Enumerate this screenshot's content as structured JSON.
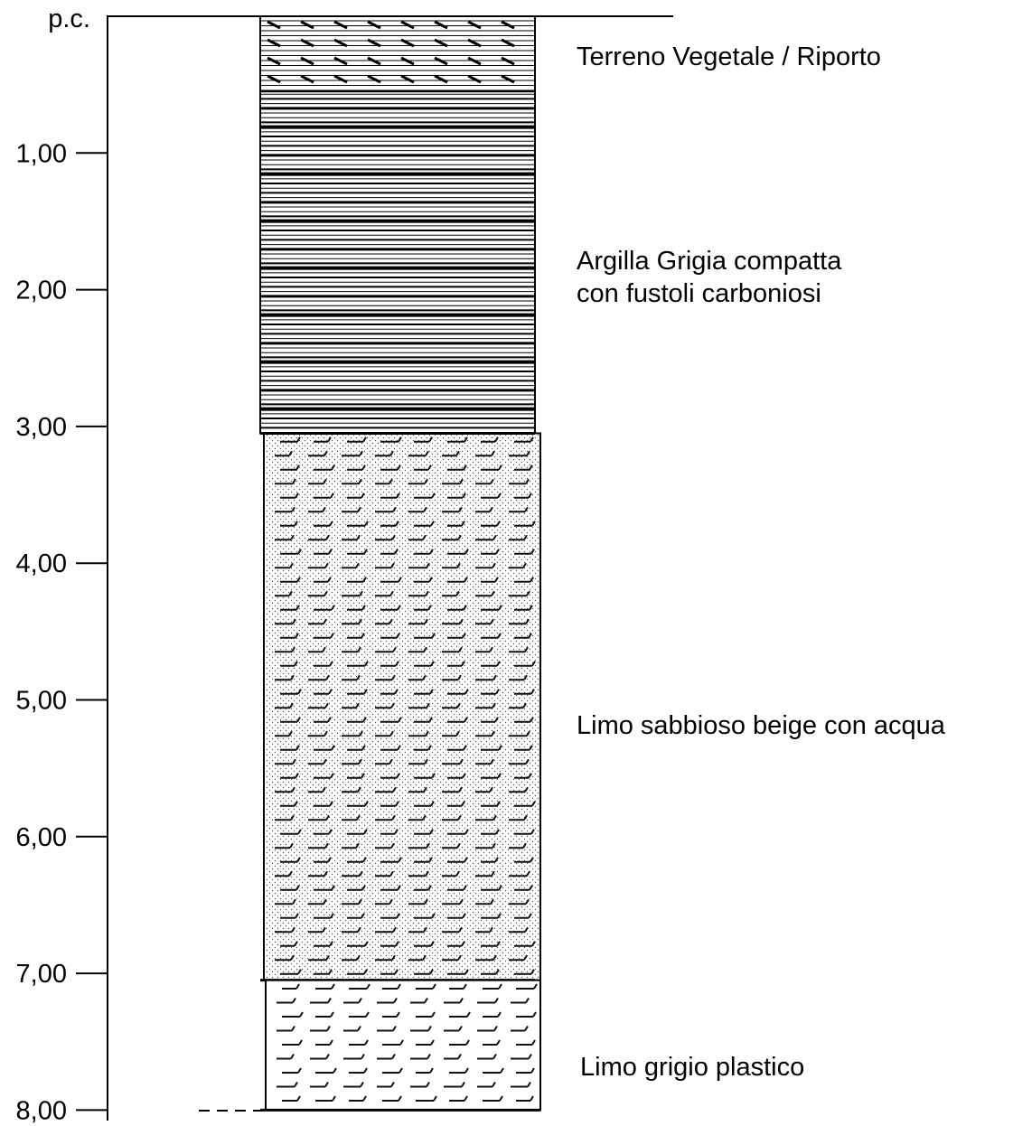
{
  "depth_axis": {
    "top_label": "p.c.",
    "ticks": [
      {
        "depth": 1,
        "label": "1,00"
      },
      {
        "depth": 2,
        "label": "2,00"
      },
      {
        "depth": 3,
        "label": "3,00"
      },
      {
        "depth": 4,
        "label": "4,00"
      },
      {
        "depth": 5,
        "label": "5,00"
      },
      {
        "depth": 6,
        "label": "6,00"
      },
      {
        "depth": 7,
        "label": "7,00"
      },
      {
        "depth": 8,
        "label": "8,00"
      }
    ]
  },
  "layers": [
    {
      "from": 0.0,
      "to": 0.55,
      "pattern": "vegetal",
      "lines": [
        "Terreno Vegetale / Riporto"
      ]
    },
    {
      "from": 0.55,
      "to": 3.05,
      "pattern": "clay",
      "lines": [
        "Argilla Grigia compatta",
        "con fustoli carboniosi"
      ]
    },
    {
      "from": 3.05,
      "to": 7.05,
      "pattern": "sandy-silt",
      "lines": [
        "Limo sabbioso beige con acqua"
      ]
    },
    {
      "from": 7.05,
      "to": 8.0,
      "pattern": "silt",
      "lines": [
        "Limo grigio plastico"
      ]
    }
  ]
}
